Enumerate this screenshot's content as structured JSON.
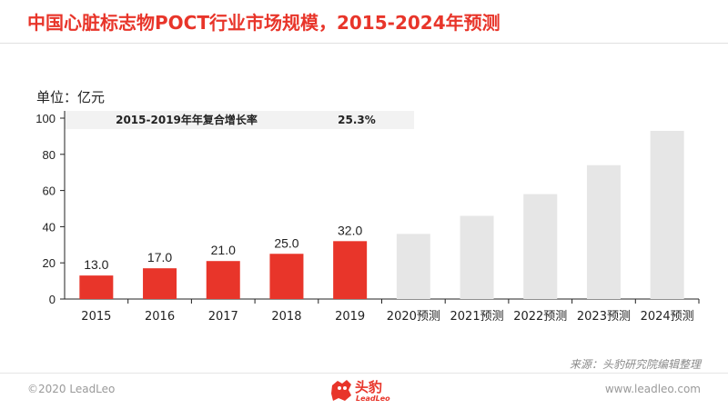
{
  "header": {
    "title": "中国心脏标志物POCT行业市场规模，2015-2024年预测"
  },
  "unit_label": "单位：亿元",
  "colors": {
    "accent": "#e8352a",
    "forecast": "#e6e6e6",
    "axis": "#222222"
  },
  "chart_data": {
    "type": "bar",
    "categories": [
      "2015",
      "2016",
      "2017",
      "2018",
      "2019",
      "2020预测",
      "2021预测",
      "2022预测",
      "2023预测",
      "2024预测"
    ],
    "values": [
      13.0,
      17.0,
      21.0,
      25.0,
      32.0,
      36,
      46,
      58,
      74,
      93
    ],
    "data_labels": [
      "13.0",
      "17.0",
      "21.0",
      "25.0",
      "32.0",
      null,
      null,
      null,
      null,
      null
    ],
    "bar_kind": [
      "actual",
      "actual",
      "actual",
      "actual",
      "actual",
      "forecast",
      "forecast",
      "forecast",
      "forecast",
      "forecast"
    ],
    "yticks": [
      0,
      20,
      40,
      60,
      80,
      100
    ],
    "ylim": [
      0,
      100
    ],
    "grid": false,
    "annotation": {
      "label": "2015-2019年年复合增长率",
      "value": "25.3%"
    }
  },
  "footer": {
    "source": "来源：头豹研究院编辑整理",
    "copyright": "©2020 LeadLeo",
    "website": "www.leadleo.com",
    "logo_text": "头豹",
    "logo_sub": "LeadLeo"
  }
}
